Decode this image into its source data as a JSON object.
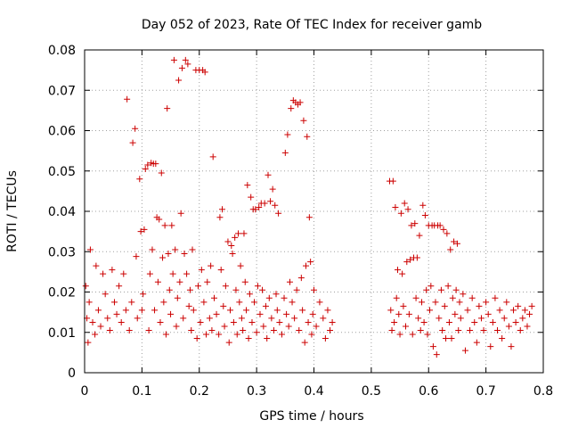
{
  "chart_data": {
    "type": "scatter",
    "title": "Day 052 of 2023, Rate Of TEC Index for receiver gamb",
    "xlabel": "GPS time / hours",
    "ylabel": "ROTI / TECUs",
    "xlim": [
      0,
      0.8
    ],
    "ylim": [
      0,
      0.08
    ],
    "xticks": [
      0,
      0.1,
      0.2,
      0.3,
      0.4,
      0.5,
      0.6,
      0.7,
      0.8
    ],
    "xtick_labels": [
      "0",
      "0.1",
      "0.2",
      "0.3",
      "0.4",
      "0.5",
      "0.6",
      "0.7",
      "0.8"
    ],
    "yticks": [
      0,
      0.01,
      0.02,
      0.03,
      0.04,
      0.05,
      0.06,
      0.07,
      0.08
    ],
    "ytick_labels": [
      "0",
      "0.01",
      "0.02",
      "0.03",
      "0.04",
      "0.05",
      "0.06",
      "0.07",
      "0.08"
    ],
    "grid": true,
    "marker": "+",
    "marker_color": "#cc0000",
    "series": [
      {
        "name": "ROTI",
        "points": [
          [
            0.002,
            0.0215
          ],
          [
            0.004,
            0.0135
          ],
          [
            0.006,
            0.0075
          ],
          [
            0.008,
            0.0175
          ],
          [
            0.01,
            0.0305
          ],
          [
            0.014,
            0.0125
          ],
          [
            0.018,
            0.0095
          ],
          [
            0.02,
            0.0265
          ],
          [
            0.024,
            0.0155
          ],
          [
            0.028,
            0.0115
          ],
          [
            0.032,
            0.0245
          ],
          [
            0.036,
            0.0195
          ],
          [
            0.04,
            0.0135
          ],
          [
            0.044,
            0.0105
          ],
          [
            0.048,
            0.0255
          ],
          [
            0.052,
            0.0175
          ],
          [
            0.056,
            0.0145
          ],
          [
            0.06,
            0.0215
          ],
          [
            0.064,
            0.0125
          ],
          [
            0.068,
            0.0245
          ],
          [
            0.072,
            0.0155
          ],
          [
            0.074,
            0.0678
          ],
          [
            0.078,
            0.0105
          ],
          [
            0.082,
            0.0175
          ],
          [
            0.084,
            0.057
          ],
          [
            0.088,
            0.0605
          ],
          [
            0.09,
            0.0288
          ],
          [
            0.092,
            0.0135
          ],
          [
            0.096,
            0.048
          ],
          [
            0.098,
            0.035
          ],
          [
            0.1,
            0.0155
          ],
          [
            0.102,
            0.0195
          ],
          [
            0.104,
            0.0355
          ],
          [
            0.106,
            0.0505
          ],
          [
            0.11,
            0.0515
          ],
          [
            0.112,
            0.0105
          ],
          [
            0.114,
            0.0245
          ],
          [
            0.116,
            0.052
          ],
          [
            0.118,
            0.0305
          ],
          [
            0.12,
            0.0518
          ],
          [
            0.122,
            0.0155
          ],
          [
            0.124,
            0.0518
          ],
          [
            0.126,
            0.0385
          ],
          [
            0.128,
            0.0225
          ],
          [
            0.13,
            0.038
          ],
          [
            0.132,
            0.0125
          ],
          [
            0.134,
            0.0495
          ],
          [
            0.136,
            0.0285
          ],
          [
            0.138,
            0.0175
          ],
          [
            0.14,
            0.0365
          ],
          [
            0.142,
            0.0095
          ],
          [
            0.144,
            0.0655
          ],
          [
            0.146,
            0.0295
          ],
          [
            0.148,
            0.0205
          ],
          [
            0.15,
            0.0145
          ],
          [
            0.152,
            0.0365
          ],
          [
            0.154,
            0.0245
          ],
          [
            0.156,
            0.0775
          ],
          [
            0.158,
            0.0305
          ],
          [
            0.16,
            0.0115
          ],
          [
            0.162,
            0.0185
          ],
          [
            0.164,
            0.0725
          ],
          [
            0.166,
            0.0225
          ],
          [
            0.168,
            0.0395
          ],
          [
            0.17,
            0.0755
          ],
          [
            0.172,
            0.0135
          ],
          [
            0.174,
            0.0295
          ],
          [
            0.176,
            0.0775
          ],
          [
            0.178,
            0.0245
          ],
          [
            0.18,
            0.0765
          ],
          [
            0.182,
            0.0165
          ],
          [
            0.184,
            0.0205
          ],
          [
            0.186,
            0.0105
          ],
          [
            0.188,
            0.0305
          ],
          [
            0.19,
            0.0155
          ],
          [
            0.194,
            0.075
          ],
          [
            0.196,
            0.0085
          ],
          [
            0.198,
            0.0215
          ],
          [
            0.2,
            0.075
          ],
          [
            0.202,
            0.0125
          ],
          [
            0.204,
            0.0255
          ],
          [
            0.206,
            0.075
          ],
          [
            0.208,
            0.0175
          ],
          [
            0.21,
            0.0745
          ],
          [
            0.212,
            0.0095
          ],
          [
            0.214,
            0.0225
          ],
          [
            0.218,
            0.0135
          ],
          [
            0.22,
            0.0265
          ],
          [
            0.222,
            0.0105
          ],
          [
            0.224,
            0.0535
          ],
          [
            0.226,
            0.0185
          ],
          [
            0.23,
            0.0145
          ],
          [
            0.234,
            0.0095
          ],
          [
            0.236,
            0.0385
          ],
          [
            0.238,
            0.0255
          ],
          [
            0.24,
            0.0405
          ],
          [
            0.242,
            0.0165
          ],
          [
            0.244,
            0.0115
          ],
          [
            0.246,
            0.0215
          ],
          [
            0.25,
            0.0325
          ],
          [
            0.252,
            0.0075
          ],
          [
            0.254,
            0.0155
          ],
          [
            0.256,
            0.0315
          ],
          [
            0.258,
            0.0295
          ],
          [
            0.26,
            0.0125
          ],
          [
            0.262,
            0.0335
          ],
          [
            0.264,
            0.0205
          ],
          [
            0.266,
            0.0095
          ],
          [
            0.268,
            0.0345
          ],
          [
            0.27,
            0.0175
          ],
          [
            0.272,
            0.0265
          ],
          [
            0.274,
            0.0135
          ],
          [
            0.276,
            0.0105
          ],
          [
            0.278,
            0.0345
          ],
          [
            0.28,
            0.0225
          ],
          [
            0.282,
            0.0155
          ],
          [
            0.284,
            0.0465
          ],
          [
            0.286,
            0.0085
          ],
          [
            0.288,
            0.0195
          ],
          [
            0.29,
            0.0435
          ],
          [
            0.292,
            0.0125
          ],
          [
            0.294,
            0.0405
          ],
          [
            0.296,
            0.0175
          ],
          [
            0.298,
            0.0405
          ],
          [
            0.3,
            0.01
          ],
          [
            0.302,
            0.0215
          ],
          [
            0.304,
            0.041
          ],
          [
            0.306,
            0.0145
          ],
          [
            0.308,
            0.042
          ],
          [
            0.31,
            0.0205
          ],
          [
            0.312,
            0.0115
          ],
          [
            0.314,
            0.042
          ],
          [
            0.316,
            0.0165
          ],
          [
            0.318,
            0.0085
          ],
          [
            0.32,
            0.049
          ],
          [
            0.322,
            0.0185
          ],
          [
            0.324,
            0.0425
          ],
          [
            0.326,
            0.0135
          ],
          [
            0.328,
            0.0455
          ],
          [
            0.33,
            0.0105
          ],
          [
            0.332,
            0.0415
          ],
          [
            0.334,
            0.0195
          ],
          [
            0.336,
            0.0155
          ],
          [
            0.338,
            0.0395
          ],
          [
            0.34,
            0.0125
          ],
          [
            0.344,
            0.0095
          ],
          [
            0.348,
            0.0185
          ],
          [
            0.35,
            0.0545
          ],
          [
            0.352,
            0.0145
          ],
          [
            0.354,
            0.059
          ],
          [
            0.356,
            0.0115
          ],
          [
            0.358,
            0.0225
          ],
          [
            0.36,
            0.0655
          ],
          [
            0.362,
            0.0175
          ],
          [
            0.364,
            0.0675
          ],
          [
            0.366,
            0.0135
          ],
          [
            0.368,
            0.067
          ],
          [
            0.37,
            0.0205
          ],
          [
            0.372,
            0.0665
          ],
          [
            0.374,
            0.0105
          ],
          [
            0.376,
            0.067
          ],
          [
            0.378,
            0.0235
          ],
          [
            0.38,
            0.0155
          ],
          [
            0.382,
            0.0625
          ],
          [
            0.384,
            0.0075
          ],
          [
            0.386,
            0.0265
          ],
          [
            0.388,
            0.0585
          ],
          [
            0.39,
            0.0125
          ],
          [
            0.392,
            0.0385
          ],
          [
            0.394,
            0.0275
          ],
          [
            0.396,
            0.0095
          ],
          [
            0.398,
            0.0145
          ],
          [
            0.4,
            0.0205
          ],
          [
            0.404,
            0.0115
          ],
          [
            0.41,
            0.0175
          ],
          [
            0.416,
            0.0135
          ],
          [
            0.42,
            0.0085
          ],
          [
            0.424,
            0.0155
          ],
          [
            0.428,
            0.0105
          ],
          [
            0.432,
            0.0125
          ],
          [
            0.532,
            0.0475
          ],
          [
            0.534,
            0.0155
          ],
          [
            0.536,
            0.0105
          ],
          [
            0.538,
            0.0475
          ],
          [
            0.54,
            0.0125
          ],
          [
            0.542,
            0.041
          ],
          [
            0.544,
            0.0185
          ],
          [
            0.546,
            0.0255
          ],
          [
            0.548,
            0.0145
          ],
          [
            0.55,
            0.0095
          ],
          [
            0.552,
            0.0395
          ],
          [
            0.554,
            0.0245
          ],
          [
            0.556,
            0.0165
          ],
          [
            0.558,
            0.042
          ],
          [
            0.56,
            0.0115
          ],
          [
            0.562,
            0.0275
          ],
          [
            0.564,
            0.0405
          ],
          [
            0.566,
            0.0145
          ],
          [
            0.568,
            0.028
          ],
          [
            0.57,
            0.0365
          ],
          [
            0.572,
            0.0095
          ],
          [
            0.574,
            0.0285
          ],
          [
            0.576,
            0.037
          ],
          [
            0.578,
            0.0185
          ],
          [
            0.58,
            0.0285
          ],
          [
            0.582,
            0.0135
          ],
          [
            0.584,
            0.034
          ],
          [
            0.586,
            0.0105
          ],
          [
            0.588,
            0.0175
          ],
          [
            0.59,
            0.0415
          ],
          [
            0.592,
            0.0125
          ],
          [
            0.594,
            0.039
          ],
          [
            0.596,
            0.0205
          ],
          [
            0.598,
            0.0095
          ],
          [
            0.6,
            0.0365
          ],
          [
            0.602,
            0.0155
          ],
          [
            0.604,
            0.0215
          ],
          [
            0.606,
            0.0365
          ],
          [
            0.608,
            0.0065
          ],
          [
            0.61,
            0.0365
          ],
          [
            0.612,
            0.0175
          ],
          [
            0.614,
            0.0045
          ],
          [
            0.616,
            0.0365
          ],
          [
            0.618,
            0.0135
          ],
          [
            0.62,
            0.0365
          ],
          [
            0.622,
            0.0205
          ],
          [
            0.624,
            0.0105
          ],
          [
            0.626,
            0.0355
          ],
          [
            0.628,
            0.0165
          ],
          [
            0.63,
            0.0085
          ],
          [
            0.632,
            0.0345
          ],
          [
            0.634,
            0.0215
          ],
          [
            0.636,
            0.0125
          ],
          [
            0.638,
            0.0305
          ],
          [
            0.64,
            0.0085
          ],
          [
            0.642,
            0.0185
          ],
          [
            0.644,
            0.0325
          ],
          [
            0.646,
            0.0145
          ],
          [
            0.648,
            0.0205
          ],
          [
            0.65,
            0.032
          ],
          [
            0.652,
            0.0105
          ],
          [
            0.654,
            0.0175
          ],
          [
            0.656,
            0.0135
          ],
          [
            0.66,
            0.0195
          ],
          [
            0.664,
            0.0055
          ],
          [
            0.668,
            0.0155
          ],
          [
            0.672,
            0.0105
          ],
          [
            0.676,
            0.0185
          ],
          [
            0.68,
            0.0125
          ],
          [
            0.684,
            0.0075
          ],
          [
            0.688,
            0.0165
          ],
          [
            0.692,
            0.0135
          ],
          [
            0.696,
            0.0105
          ],
          [
            0.7,
            0.0175
          ],
          [
            0.704,
            0.0145
          ],
          [
            0.708,
            0.0065
          ],
          [
            0.712,
            0.0125
          ],
          [
            0.716,
            0.0185
          ],
          [
            0.72,
            0.0105
          ],
          [
            0.724,
            0.0155
          ],
          [
            0.728,
            0.0085
          ],
          [
            0.732,
            0.0135
          ],
          [
            0.736,
            0.0175
          ],
          [
            0.74,
            0.0115
          ],
          [
            0.744,
            0.0065
          ],
          [
            0.748,
            0.0155
          ],
          [
            0.752,
            0.0125
          ],
          [
            0.756,
            0.0165
          ],
          [
            0.76,
            0.0105
          ],
          [
            0.764,
            0.0135
          ],
          [
            0.768,
            0.0155
          ],
          [
            0.772,
            0.0115
          ],
          [
            0.776,
            0.0145
          ],
          [
            0.78,
            0.0165
          ]
        ]
      }
    ]
  }
}
